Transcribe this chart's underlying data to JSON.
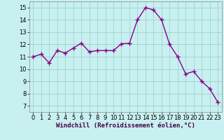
{
  "x": [
    0,
    1,
    2,
    3,
    4,
    5,
    6,
    7,
    8,
    9,
    10,
    11,
    12,
    13,
    14,
    15,
    16,
    17,
    18,
    19,
    20,
    21,
    22,
    23
  ],
  "y": [
    11.0,
    11.2,
    10.5,
    11.5,
    11.3,
    11.7,
    12.1,
    11.4,
    11.5,
    11.5,
    11.5,
    12.05,
    12.1,
    14.0,
    15.0,
    14.8,
    14.0,
    12.0,
    11.0,
    9.6,
    9.8,
    9.0,
    8.4,
    7.3
  ],
  "line_color": "#880088",
  "marker": "+",
  "markersize": 4,
  "linewidth": 1.0,
  "bg_color": "#c8f0f0",
  "grid_color": "#a0d0d0",
  "xlabel": "Windchill (Refroidissement éolien,°C)",
  "xlabel_fontsize": 6.5,
  "ylabel_ticks": [
    7,
    8,
    9,
    10,
    11,
    12,
    13,
    14,
    15
  ],
  "xlabel_ticks": [
    0,
    1,
    2,
    3,
    4,
    5,
    6,
    7,
    8,
    9,
    10,
    11,
    12,
    13,
    14,
    15,
    16,
    17,
    18,
    19,
    20,
    21,
    22,
    23
  ],
  "xlim": [
    -0.5,
    23.5
  ],
  "ylim": [
    6.5,
    15.5
  ],
  "tick_fontsize": 6.0
}
